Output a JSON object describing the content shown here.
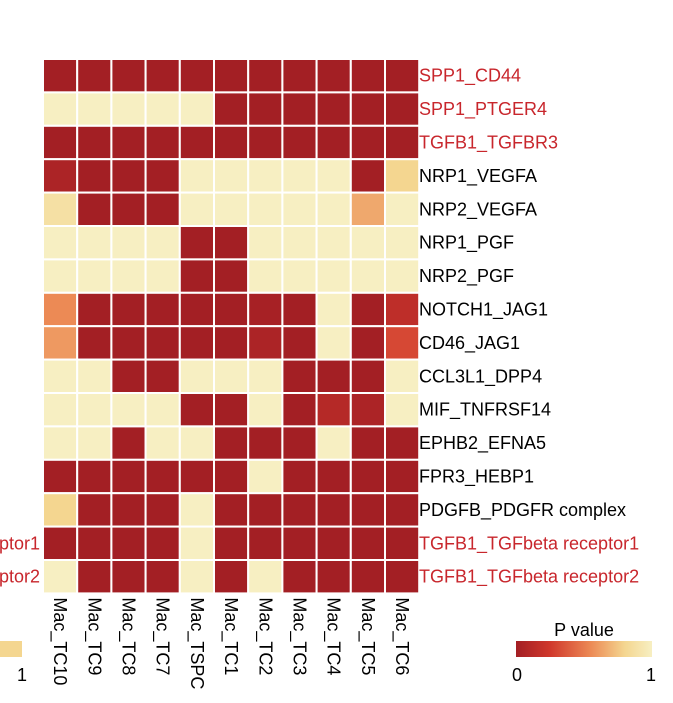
{
  "chart_data": {
    "type": "heatmap",
    "title": "",
    "columns": [
      "Mac_TC10",
      "Mac_TC9",
      "Mac_TC8",
      "Mac_TC7",
      "Mac_TSPC",
      "Mac_TC1",
      "Mac_TC2",
      "Mac_TC3",
      "Mac_TC4",
      "Mac_TC5",
      "Mac_TC6"
    ],
    "rows": [
      {
        "label": "SPP1_CD44",
        "highlight": true
      },
      {
        "label": "SPP1_PTGER4",
        "highlight": true
      },
      {
        "label": "TGFB1_TGFBR3",
        "highlight": true
      },
      {
        "label": "NRP1_VEGFA",
        "highlight": false
      },
      {
        "label": "NRP2_VEGFA",
        "highlight": false
      },
      {
        "label": "NRP1_PGF",
        "highlight": false
      },
      {
        "label": "NRP2_PGF",
        "highlight": false
      },
      {
        "label": "NOTCH1_JAG1",
        "highlight": false
      },
      {
        "label": "CD46_JAG1",
        "highlight": false
      },
      {
        "label": "CCL3L1_DPP4",
        "highlight": false
      },
      {
        "label": "MIF_TNFRSF14",
        "highlight": false
      },
      {
        "label": "EPHB2_EFNA5",
        "highlight": false
      },
      {
        "label": "FPR3_HEBP1",
        "highlight": false
      },
      {
        "label": "PDGFB_PDGFR complex",
        "highlight": false
      },
      {
        "label": "TGFB1_TGFbeta receptor1",
        "highlight": true
      },
      {
        "label": "TGFB1_TGFbeta receptor2",
        "highlight": true
      }
    ],
    "values": [
      [
        0.0,
        0.0,
        0.0,
        0.0,
        0.0,
        0.0,
        0.0,
        0.0,
        0.0,
        0.0,
        0.0
      ],
      [
        1.0,
        1.0,
        1.0,
        1.0,
        1.0,
        0.0,
        0.0,
        0.0,
        0.0,
        0.0,
        0.0
      ],
      [
        0.0,
        0.0,
        0.0,
        0.0,
        0.0,
        0.0,
        0.0,
        0.0,
        0.0,
        0.0,
        0.0
      ],
      [
        0.05,
        0.0,
        0.0,
        0.0,
        1.0,
        1.0,
        1.0,
        1.0,
        1.0,
        0.0,
        0.75
      ],
      [
        0.85,
        0.0,
        0.0,
        0.0,
        1.0,
        1.0,
        1.0,
        1.0,
        1.0,
        0.6,
        1.0
      ],
      [
        1.0,
        1.0,
        1.0,
        1.0,
        0.0,
        0.0,
        1.0,
        1.0,
        1.0,
        1.0,
        1.0
      ],
      [
        1.0,
        1.0,
        1.0,
        1.0,
        0.0,
        0.0,
        1.0,
        1.0,
        1.0,
        1.0,
        1.0
      ],
      [
        0.5,
        0.0,
        0.0,
        0.0,
        0.0,
        0.0,
        0.02,
        0.0,
        1.0,
        0.0,
        0.15
      ],
      [
        0.55,
        0.0,
        0.0,
        0.0,
        0.0,
        0.0,
        0.05,
        0.0,
        1.0,
        0.0,
        0.3
      ],
      [
        1.0,
        1.0,
        0.0,
        0.0,
        1.0,
        1.0,
        1.0,
        0.0,
        0.0,
        0.0,
        1.0
      ],
      [
        1.0,
        1.0,
        1.0,
        1.0,
        0.0,
        0.0,
        1.0,
        0.0,
        0.1,
        0.05,
        1.0
      ],
      [
        1.0,
        1.0,
        0.0,
        1.0,
        1.0,
        0.0,
        0.0,
        0.0,
        1.0,
        0.0,
        0.0
      ],
      [
        0.0,
        0.0,
        0.0,
        0.0,
        0.0,
        0.0,
        1.0,
        0.0,
        0.0,
        0.0,
        0.0
      ],
      [
        0.75,
        0.0,
        0.0,
        0.0,
        1.0,
        0.0,
        0.0,
        0.0,
        0.0,
        0.0,
        0.0
      ],
      [
        0.0,
        0.0,
        0.0,
        0.0,
        1.0,
        0.0,
        0.0,
        0.0,
        0.0,
        0.0,
        0.0
      ],
      [
        1.0,
        0.0,
        0.0,
        0.0,
        1.0,
        0.0,
        1.0,
        0.0,
        0.0,
        0.0,
        0.0
      ]
    ],
    "value_range": [
      0,
      1
    ],
    "colorscale": [
      "#a31f24",
      "#d0382c",
      "#ec8a55",
      "#f4d690",
      "#f7efc2"
    ],
    "highlight_color": "#c8262c",
    "default_label_color": "#000000",
    "legend": {
      "title": "P value",
      "min_label": "0",
      "max_label": "1",
      "placement": "bottom-right"
    },
    "left_edge_fragments": {
      "row_label_fragments": [
        "ptor1",
        "ptor2"
      ],
      "legend_label": "1"
    }
  }
}
